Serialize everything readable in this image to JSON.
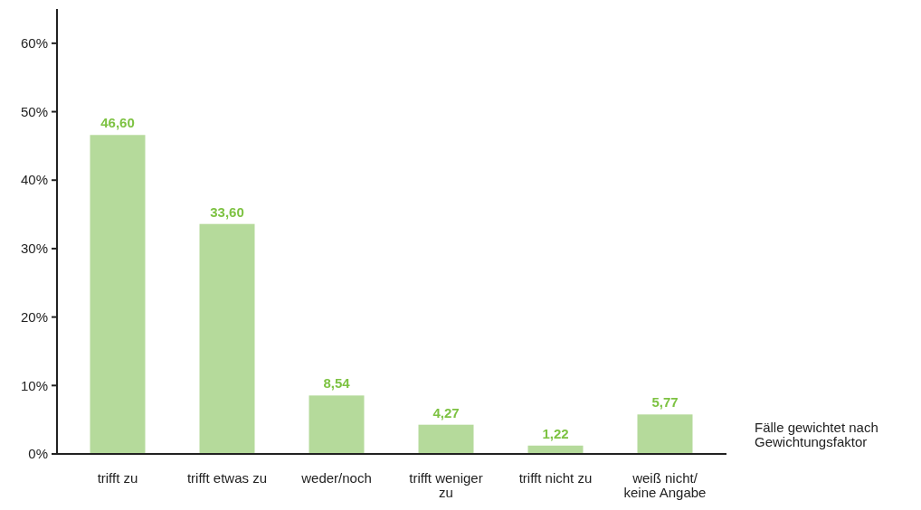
{
  "chart_data": {
    "type": "bar",
    "categories": [
      "trifft zu",
      "trifft etwas zu",
      "weder/noch",
      "trifft weniger zu",
      "trifft nicht zu",
      "weiß nicht/ keine Angabe"
    ],
    "values": [
      46.6,
      33.6,
      8.54,
      4.27,
      1.22,
      5.77
    ],
    "value_labels": [
      "46,60",
      "33,60",
      "8,54",
      "4,27",
      "1,22",
      "5,77"
    ],
    "color": "#b5da9b",
    "ylim": [
      0,
      65
    ],
    "yticks": [
      {
        "value": 0,
        "label": "0%"
      },
      {
        "value": 10,
        "label": "10%"
      },
      {
        "value": 20,
        "label": "20%"
      },
      {
        "value": 30,
        "label": "30%"
      },
      {
        "value": 40,
        "label": "40%"
      },
      {
        "value": 50,
        "label": "50%"
      },
      {
        "value": 60,
        "label": "60%"
      }
    ],
    "annotations": [
      "Fälle gewichtet nach Gewichtungsfaktor"
    ],
    "grid": false
  }
}
